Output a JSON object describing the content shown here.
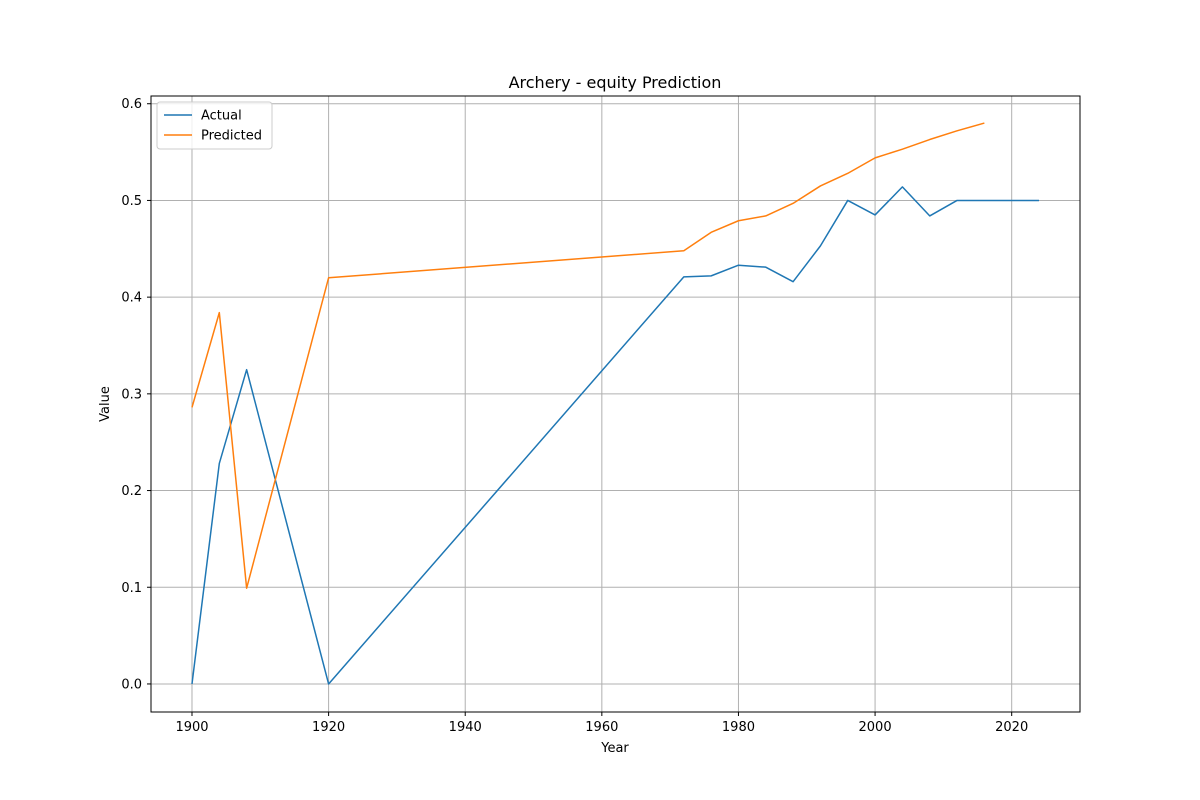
{
  "chart_data": {
    "type": "line",
    "title": "Archery - equity Prediction",
    "xlabel": "Year",
    "ylabel": "Value",
    "xlim": [
      1894,
      2030
    ],
    "ylim": [
      -0.029,
      0.608
    ],
    "xticks": [
      1900,
      1920,
      1940,
      1960,
      1980,
      2000,
      2020
    ],
    "yticks": [
      0.0,
      0.1,
      0.2,
      0.3,
      0.4,
      0.5,
      0.6
    ],
    "yticks_labels": [
      "0.0",
      "0.1",
      "0.2",
      "0.3",
      "0.4",
      "0.5",
      "0.6"
    ],
    "grid": true,
    "legend_position": "upper-left",
    "series": [
      {
        "name": "Actual",
        "color": "#1f77b4",
        "x": [
          1900,
          1904,
          1908,
          1920,
          1972,
          1976,
          1980,
          1984,
          1988,
          1992,
          1996,
          2000,
          2004,
          2008,
          2012,
          2016,
          2020,
          2024
        ],
        "y": [
          0.0,
          0.228,
          0.325,
          0.0,
          0.421,
          0.422,
          0.433,
          0.431,
          0.416,
          0.453,
          0.5,
          0.485,
          0.514,
          0.484,
          0.5,
          0.5,
          0.5,
          0.5
        ]
      },
      {
        "name": "Predicted",
        "color": "#ff7f0e",
        "x": [
          1900,
          1904,
          1908,
          1920,
          1972,
          1976,
          1980,
          1984,
          1988,
          1992,
          1996,
          2000,
          2004,
          2008,
          2012,
          2016
        ],
        "y": [
          0.286,
          0.384,
          0.099,
          0.42,
          0.448,
          0.467,
          0.479,
          0.484,
          0.497,
          0.515,
          0.528,
          0.544,
          0.553,
          0.563,
          0.572,
          0.58
        ]
      }
    ]
  }
}
